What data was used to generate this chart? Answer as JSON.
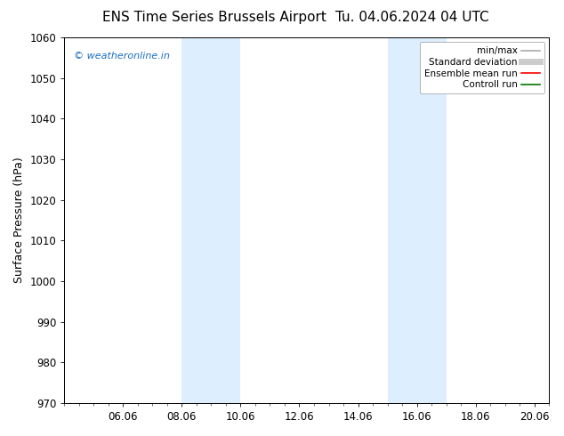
{
  "title_left": "ENS Time Series Brussels Airport",
  "title_right": "Tu. 04.06.2024 04 UTC",
  "ylabel": "Surface Pressure (hPa)",
  "ylim": [
    970,
    1060
  ],
  "yticks": [
    970,
    980,
    990,
    1000,
    1010,
    1020,
    1030,
    1040,
    1050,
    1060
  ],
  "xlim_start": 4.0,
  "xlim_end": 20.5,
  "xtick_labels": [
    "06.06",
    "08.06",
    "10.06",
    "12.06",
    "14.06",
    "16.06",
    "18.06",
    "20.06"
  ],
  "xtick_positions": [
    6.0,
    8.0,
    10.0,
    12.0,
    14.0,
    16.0,
    18.0,
    20.0
  ],
  "shaded_bands": [
    {
      "x_start": 8.0,
      "x_end": 10.0
    },
    {
      "x_start": 15.0,
      "x_end": 17.0
    }
  ],
  "shaded_color": "#ddeeff",
  "watermark_text": "© weatheronline.in",
  "watermark_color": "#1a6ec0",
  "legend_entries": [
    {
      "label": "min/max",
      "color": "#aaaaaa",
      "lw": 1.2,
      "style": "solid"
    },
    {
      "label": "Standard deviation",
      "color": "#cccccc",
      "lw": 5,
      "style": "solid"
    },
    {
      "label": "Ensemble mean run",
      "color": "#ff0000",
      "lw": 1.2,
      "style": "solid"
    },
    {
      "label": "Controll run",
      "color": "#007700",
      "lw": 1.2,
      "style": "solid"
    }
  ],
  "bg_color": "#ffffff",
  "grid_color": "#dddddd",
  "title_fontsize": 11,
  "tick_fontsize": 8.5,
  "ylabel_fontsize": 9,
  "watermark_fontsize": 8
}
